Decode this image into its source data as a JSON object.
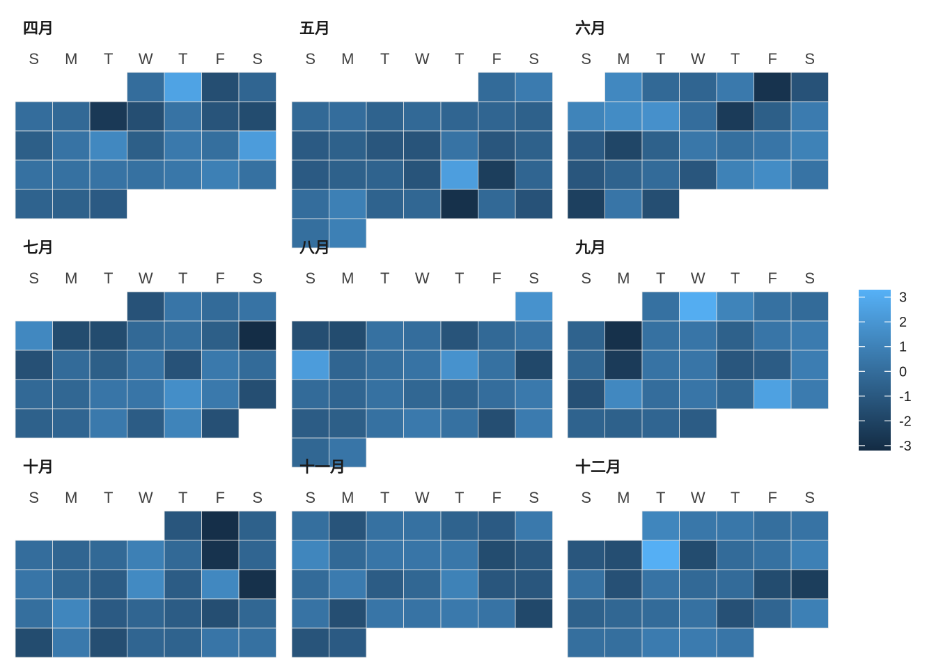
{
  "chart_data": {
    "type": "heatmap",
    "weekday_labels": [
      "S",
      "M",
      "T",
      "W",
      "T",
      "F",
      "S"
    ],
    "color_scale": {
      "min": -3.2,
      "max": 3.3,
      "low_color": "#132b43",
      "high_color": "#56b1f7",
      "ticks": [
        3,
        2,
        1,
        0,
        -1,
        -2,
        -3
      ]
    },
    "months": [
      {
        "name": "四月",
        "start_weekday": 3,
        "values": [
          0.0,
          2.6,
          -1.5,
          -0.4,
          0.0,
          -0.2,
          -2.5,
          -1.5,
          0.3,
          -1.2,
          -1.6,
          -0.7,
          0.3,
          1.3,
          -0.7,
          0.6,
          0.1,
          2.3,
          0.2,
          0.2,
          0.3,
          0.2,
          0.5,
          0.9,
          0.2,
          -0.5,
          -0.6,
          -0.9
        ]
      },
      {
        "name": "五月",
        "start_weekday": 5,
        "values": [
          -0.1,
          0.7,
          -0.2,
          0.0,
          -0.5,
          -0.2,
          -0.4,
          -0.4,
          -0.6,
          -0.9,
          -0.6,
          -1.1,
          -1.2,
          0.3,
          -1.1,
          -0.6,
          -0.9,
          -0.6,
          -0.5,
          -1.2,
          2.4,
          -2.3,
          -0.4,
          0.0,
          0.9,
          -0.5,
          -0.3,
          -2.9,
          -0.2,
          -1.3,
          0.1,
          0.9
        ]
      },
      {
        "name": "六月",
        "start_weekday": 1,
        "values": [
          1.3,
          -0.2,
          -0.4,
          0.6,
          -2.8,
          -1.3,
          1.1,
          1.5,
          1.7,
          0.0,
          -2.4,
          -0.7,
          0.7,
          -0.9,
          -1.9,
          -0.6,
          0.5,
          0.1,
          0.4,
          1.0,
          -1.1,
          -0.5,
          -0.1,
          -1.1,
          1.0,
          1.5,
          0.3,
          -2.2,
          0.4,
          -1.5
        ]
      },
      {
        "name": "七月",
        "start_weekday": 3,
        "values": [
          -1.3,
          0.4,
          -0.1,
          0.3,
          1.3,
          -1.6,
          -1.6,
          -0.2,
          0.1,
          -0.7,
          -3.1,
          -1.4,
          -0.1,
          -0.7,
          0.3,
          -1.3,
          0.6,
          -0.1,
          -0.2,
          -0.3,
          0.4,
          0.4,
          1.6,
          0.6,
          -1.5,
          -0.6,
          -0.4,
          0.6,
          -0.8,
          1.1,
          -1.4
        ]
      },
      {
        "name": "八月",
        "start_weekday": 6,
        "values": [
          1.8,
          -1.5,
          -1.6,
          0.2,
          0.0,
          -1.2,
          -0.2,
          0.3,
          2.3,
          -0.4,
          0.1,
          0.3,
          1.8,
          0.2,
          -1.8,
          -0.1,
          -0.4,
          0.2,
          -0.3,
          -0.5,
          0.0,
          0.6,
          -0.8,
          -0.7,
          0.2,
          0.6,
          0.2,
          -1.5,
          0.7,
          -0.3,
          0.4
        ]
      },
      {
        "name": "九月",
        "start_weekday": 2,
        "values": [
          0.2,
          3.1,
          1.1,
          0.2,
          -0.1,
          -0.5,
          -2.9,
          0.2,
          0.4,
          -0.6,
          0.4,
          0.7,
          -0.3,
          -2.4,
          0.3,
          0.4,
          -1.1,
          -0.8,
          0.8,
          -1.4,
          1.3,
          0.0,
          0.4,
          -0.3,
          2.5,
          0.7,
          -0.5,
          -0.6,
          -0.4,
          -0.8
        ]
      },
      {
        "name": "十月",
        "start_weekday": 4,
        "values": [
          -1.1,
          -3.0,
          -0.6,
          0.0,
          -0.4,
          -0.2,
          0.9,
          -0.2,
          -2.8,
          -0.4,
          0.4,
          -0.3,
          -0.8,
          1.4,
          -0.8,
          1.3,
          -2.9,
          0.1,
          1.2,
          -0.9,
          -0.4,
          -0.8,
          -1.5,
          -0.3,
          -1.6,
          0.6,
          -1.5,
          -0.4,
          -0.5,
          0.4,
          0.2
        ]
      },
      {
        "name": "十一月",
        "start_weekday": 0,
        "values": [
          0.1,
          -1.2,
          0.2,
          0.2,
          -0.5,
          -0.9,
          0.6,
          1.2,
          -0.2,
          0.4,
          0.4,
          0.5,
          -1.6,
          -1.1,
          -0.1,
          0.7,
          -0.8,
          -0.3,
          1.0,
          -1.1,
          -1.1,
          0.3,
          -1.5,
          0.4,
          0.3,
          0.6,
          0.3,
          -1.8,
          -1.2,
          -0.9
        ]
      },
      {
        "name": "十二月",
        "start_weekday": 2,
        "values": [
          1.2,
          0.5,
          0.5,
          0.1,
          0.3,
          -1.1,
          -1.5,
          3.2,
          -1.6,
          -0.1,
          0.2,
          0.9,
          0.2,
          -1.4,
          0.3,
          -0.2,
          -0.1,
          -1.6,
          -2.3,
          -0.6,
          -0.3,
          -0.1,
          0.2,
          -1.4,
          -0.4,
          0.9,
          0.1,
          0.1,
          0.7,
          0.7,
          0.4
        ]
      }
    ]
  }
}
